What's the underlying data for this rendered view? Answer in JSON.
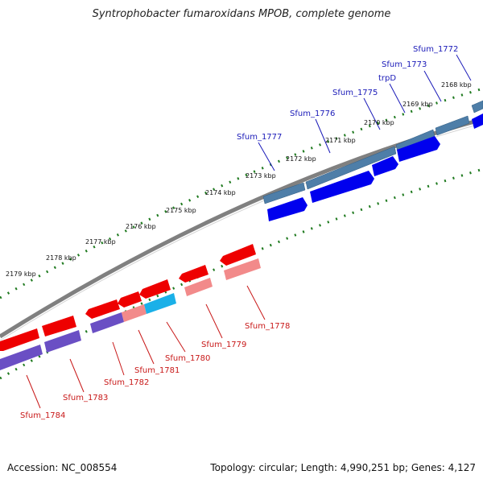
{
  "title": "Syntrophobacter fumaroxidans MPOB, complete genome",
  "footer": {
    "accession": "Accession: NC_008554",
    "topology": "Topology: circular; Length: 4,990,251 bp; Genes: 4,127"
  },
  "colors": {
    "forward_genes": "#0000ee",
    "forward_genes_light": "#4e7ea8",
    "reverse_genes": "#ee0000",
    "reverse_genes_light": "#f28a8a",
    "reverse_genes_purple": "#6a4fc4",
    "reverse_genes_cyan": "#1ab0e8",
    "backbone": "#808080",
    "tick": "#1f7a1f",
    "forward_label": "#1a1ab8",
    "reverse_label": "#c81818"
  },
  "kbp_ticks": [
    "2168 kbp",
    "2169 kbp",
    "2170 kbp",
    "2171 kbp",
    "2172 kbp",
    "2173 kbp",
    "2174 kbp",
    "2175 kbp",
    "2176 kbp",
    "2177 kbp",
    "2178 kbp",
    "2179 kbp"
  ],
  "forward_gene_labels": [
    "Sfum_1772",
    "Sfum_1773",
    "trpD",
    "Sfum_1775",
    "Sfum_1776",
    "Sfum_1777"
  ],
  "reverse_gene_labels": [
    "Sfum_1778",
    "Sfum_1779",
    "Sfum_1780",
    "Sfum_1781",
    "Sfum_1782",
    "Sfum_1783",
    "Sfum_1784"
  ]
}
